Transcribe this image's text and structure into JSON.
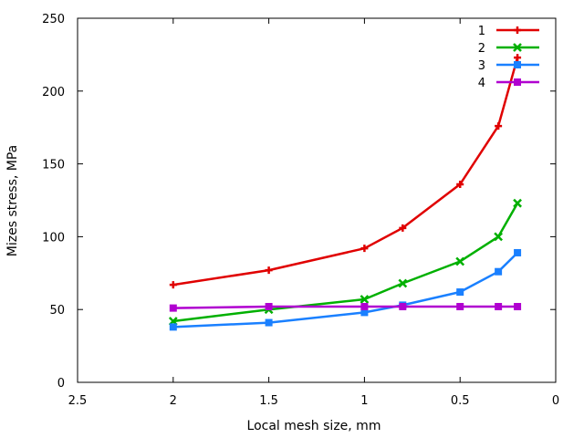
{
  "chart_data": {
    "type": "line",
    "title": "",
    "xlabel": "Local mesh size, mm",
    "ylabel": "Mizes stress, MPa",
    "xlim": [
      2.5,
      0
    ],
    "ylim": [
      0,
      250
    ],
    "x_reversed": true,
    "xticks": [
      "2.5",
      "2",
      "1.5",
      "1",
      "0.5",
      "0"
    ],
    "yticks": [
      "0",
      "50",
      "100",
      "150",
      "200",
      "250"
    ],
    "grid": false,
    "legend_position": "top-right",
    "series": [
      {
        "name": "1",
        "color": "#e00000",
        "marker": "plus",
        "x": [
          2,
          1.5,
          1,
          0.8,
          0.5,
          0.3,
          0.2
        ],
        "y": [
          67,
          77,
          92,
          106,
          136,
          176,
          223
        ]
      },
      {
        "name": "2",
        "color": "#00b000",
        "marker": "cross",
        "x": [
          2,
          1.5,
          1,
          0.8,
          0.5,
          0.3,
          0.2
        ],
        "y": [
          42,
          50,
          57,
          68,
          83,
          100,
          123
        ]
      },
      {
        "name": "3",
        "color": "#1a80ff",
        "marker": "square",
        "x": [
          2,
          1.5,
          1,
          0.8,
          0.5,
          0.3,
          0.2
        ],
        "y": [
          38,
          41,
          48,
          53,
          62,
          76,
          89
        ]
      },
      {
        "name": "4",
        "color": "#b000d0",
        "marker": "square",
        "x": [
          2,
          1.5,
          1,
          0.8,
          0.5,
          0.3,
          0.2
        ],
        "y": [
          51,
          52,
          52,
          52,
          52,
          52,
          52
        ]
      }
    ]
  }
}
